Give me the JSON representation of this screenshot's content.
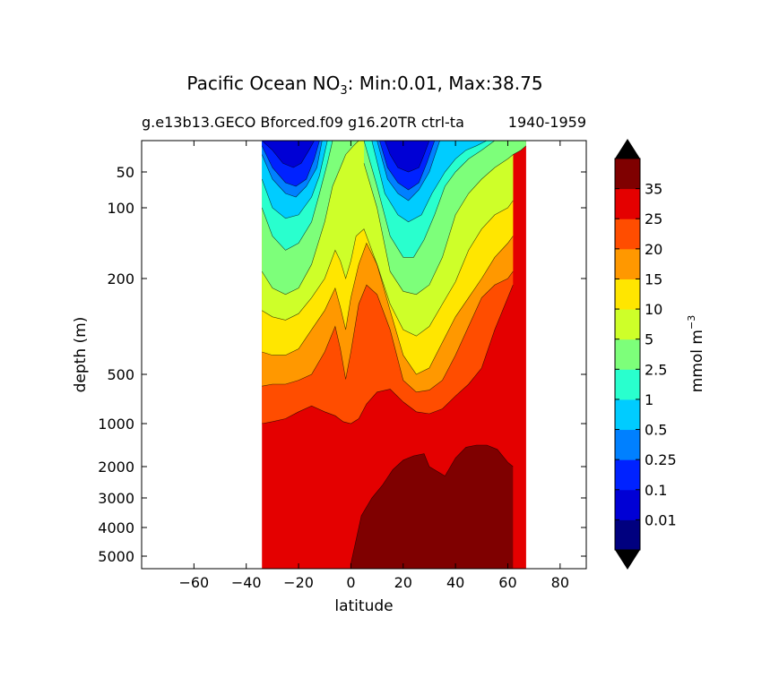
{
  "chart_data": {
    "type": "heatmap",
    "title_prefix": "Pacific Ocean NO",
    "title_subscript": "3",
    "title_suffix": ": Min:0.01, Max:38.75",
    "subtitle_left": "g.e13b13.GECO Bforced.f09 g16.20TR ctrl-ta",
    "subtitle_right": "1940-1959",
    "xlabel": "latitude",
    "ylabel": "depth (m)",
    "xlim": [
      -80,
      90
    ],
    "ylim": [
      5500,
      0
    ],
    "x_ticks": [
      -60,
      -40,
      -20,
      0,
      20,
      40,
      60,
      80
    ],
    "x_tick_labels": [
      "−60",
      "−40",
      "−20",
      "0",
      "20",
      "40",
      "60",
      "80"
    ],
    "y_ticks": [
      50,
      100,
      200,
      500,
      1000,
      2000,
      3000,
      4000,
      5000
    ],
    "y_tick_labels": [
      "50",
      "100",
      "200",
      "500",
      "1000",
      "2000",
      "3000",
      "4000",
      "5000"
    ],
    "colorbar": {
      "label": "mmol m",
      "label_exponent": "−3",
      "levels": [
        0.01,
        0.1,
        0.25,
        0.5,
        1,
        2.5,
        5,
        10,
        15,
        20,
        25,
        35
      ],
      "tick_labels": [
        "0.01",
        "0.1",
        "0.25",
        "0.5",
        "1",
        "2.5",
        "5",
        "10",
        "15",
        "20",
        "25",
        "35"
      ],
      "colors": [
        "#00007f",
        "#0000d5",
        "#0022ff",
        "#0080ff",
        "#00ccff",
        "#29ffce",
        "#7dff7a",
        "#ceff29",
        "#ffe600",
        "#ff9800",
        "#ff4d00",
        "#e40000",
        "#7f0000"
      ],
      "extend": "both",
      "extend_color": "#000000"
    },
    "data_extent": {
      "lat_min": -34,
      "lat_max": 67
    },
    "contour_boundaries": [
      {
        "level": 0.1,
        "lat": [
          -34,
          -30,
          -26,
          -22,
          -19,
          -16,
          -14
        ],
        "depth": [
          14,
          25,
          40,
          45,
          40,
          25,
          14
        ]
      },
      {
        "level": 0.1,
        "lat": [
          13,
          15,
          18,
          22,
          26,
          28,
          30
        ],
        "depth": [
          14,
          30,
          45,
          50,
          45,
          30,
          14
        ]
      },
      {
        "level": 0.25,
        "lat": [
          -34,
          -30,
          -25,
          -21,
          -17,
          -14,
          -12
        ],
        "depth": [
          20,
          45,
          65,
          70,
          60,
          35,
          14
        ]
      },
      {
        "level": 0.25,
        "lat": [
          11,
          14,
          18,
          22,
          26,
          29,
          32
        ],
        "depth": [
          14,
          45,
          65,
          75,
          65,
          40,
          14
        ]
      },
      {
        "level": 0.5,
        "lat": [
          -34,
          -30,
          -25,
          -21,
          -17,
          -13,
          -11
        ],
        "depth": [
          30,
          60,
          80,
          85,
          70,
          45,
          14
        ]
      },
      {
        "level": 0.5,
        "lat": [
          10,
          14,
          18,
          22,
          26,
          30,
          34
        ],
        "depth": [
          14,
          60,
          80,
          90,
          75,
          50,
          14
        ]
      },
      {
        "level": 1,
        "lat": [
          -34,
          -30,
          -25,
          -20,
          -15,
          -12,
          -9
        ],
        "depth": [
          60,
          100,
          115,
          110,
          85,
          55,
          14
        ]
      },
      {
        "level": 1,
        "lat": [
          8,
          13,
          18,
          22,
          27,
          31,
          36,
          40,
          44,
          48,
          52
        ],
        "depth": [
          14,
          80,
          110,
          120,
          110,
          80,
          50,
          35,
          25,
          20,
          14
        ]
      },
      {
        "level": 2.5,
        "lat": [
          -34,
          -30,
          -25,
          -20,
          -15,
          -12,
          -9,
          -7
        ],
        "depth": [
          100,
          140,
          160,
          150,
          120,
          80,
          40,
          14
        ]
      },
      {
        "level": 2.5,
        "lat": [
          5,
          10,
          15,
          20,
          24,
          28,
          32,
          36,
          40,
          45,
          50,
          55
        ],
        "depth": [
          14,
          70,
          140,
          170,
          170,
          145,
          110,
          70,
          50,
          35,
          25,
          14
        ]
      },
      {
        "level": 5,
        "lat": [
          -34,
          -30,
          -25,
          -20,
          -15,
          -10,
          -7,
          -4,
          -2,
          1,
          3
        ],
        "depth": [
          190,
          230,
          250,
          230,
          180,
          120,
          70,
          45,
          30,
          20,
          14
        ]
      },
      {
        "level": 5,
        "lat": [
          5,
          10,
          15,
          20,
          25,
          30,
          35,
          40,
          45,
          50,
          55,
          60,
          62,
          65,
          67
        ],
        "depth": [
          40,
          100,
          190,
          240,
          250,
          220,
          170,
          110,
          80,
          60,
          45,
          35,
          30,
          25,
          20
        ]
      },
      {
        "level": 10,
        "lat": [
          -34,
          -30,
          -25,
          -20,
          -15,
          -10,
          -6,
          -4,
          -2,
          0,
          2,
          5,
          10,
          15,
          20,
          25,
          30,
          35,
          40,
          45,
          50,
          55,
          60,
          62
        ],
        "depth": [
          300,
          320,
          330,
          310,
          260,
          200,
          160,
          175,
          200,
          175,
          140,
          130,
          180,
          280,
          360,
          380,
          350,
          280,
          210,
          160,
          130,
          110,
          100,
          90
        ]
      },
      {
        "level": 15,
        "lat": [
          -34,
          -30,
          -25,
          -20,
          -15,
          -10,
          -6,
          -4,
          -2,
          0,
          3,
          6,
          10,
          15,
          20,
          25,
          30,
          35,
          40,
          45,
          50,
          55,
          60,
          62
        ],
        "depth": [
          430,
          440,
          440,
          420,
          360,
          300,
          230,
          290,
          360,
          260,
          180,
          150,
          180,
          300,
          440,
          500,
          480,
          400,
          320,
          260,
          200,
          170,
          150,
          140
        ]
      },
      {
        "level": 20,
        "lat": [
          -34,
          -30,
          -25,
          -20,
          -15,
          -10,
          -6,
          -4,
          -2,
          0,
          3,
          6,
          10,
          15,
          20,
          25,
          30,
          35,
          40,
          45,
          50,
          55,
          60,
          62
        ],
        "depth": [
          620,
          600,
          600,
          560,
          500,
          430,
          350,
          420,
          550,
          430,
          280,
          220,
          250,
          360,
          560,
          680,
          660,
          560,
          440,
          350,
          260,
          220,
          200,
          190
        ]
      },
      {
        "level": 25,
        "lat": [
          -34,
          -30,
          -25,
          -20,
          -15,
          -10,
          -6,
          -3,
          0,
          3,
          6,
          10,
          15,
          20,
          25,
          30,
          35,
          40,
          45,
          50,
          55,
          60,
          62
        ],
        "depth": [
          1000,
          980,
          950,
          880,
          820,
          880,
          920,
          980,
          1000,
          950,
          800,
          680,
          650,
          780,
          880,
          900,
          850,
          720,
          600,
          480,
          360,
          260,
          220
        ]
      },
      {
        "level": 35,
        "lat": [
          0,
          4,
          8,
          12,
          16,
          20,
          24,
          28,
          30,
          36,
          40,
          44,
          48,
          52,
          56,
          60,
          62
        ],
        "depth": [
          5300,
          3600,
          3000,
          2600,
          2100,
          1850,
          1750,
          1700,
          2000,
          2300,
          1800,
          1550,
          1500,
          1500,
          1600,
          1900,
          2000
        ]
      }
    ]
  }
}
